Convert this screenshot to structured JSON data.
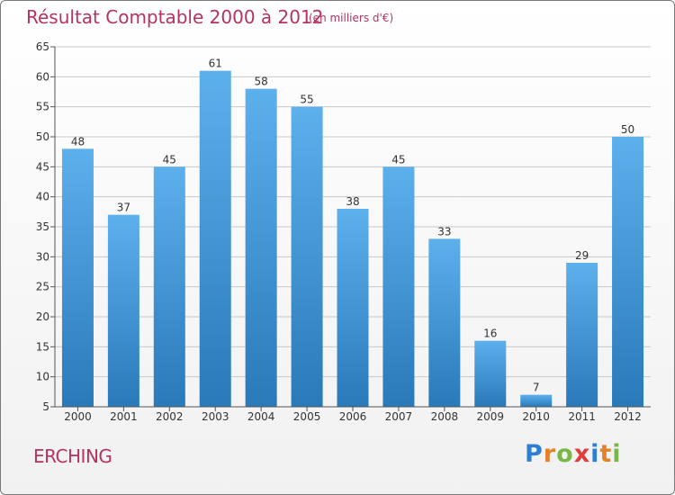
{
  "title": "Résultat Comptable 2000 à 2012",
  "subtitle": "(en milliers d'€)",
  "place": "ERCHING",
  "logo": {
    "letters": [
      "P",
      "r",
      "o",
      "x",
      "i",
      "t",
      "i"
    ],
    "colors": [
      "#2e7fd0",
      "#e2832b",
      "#7ab648",
      "#e23c3c",
      "#2e7fd0",
      "#e2832b",
      "#7ab648"
    ]
  },
  "colors": {
    "bar_light": "#5cb0ec",
    "bar_dark": "#2a79b9",
    "grid": "#c8c8c8",
    "text": "#b5335e"
  },
  "chart_data": {
    "type": "bar",
    "title": "Résultat Comptable 2000 à 2012",
    "subtitle": "(en milliers d'€)",
    "categories": [
      "2000",
      "2001",
      "2002",
      "2003",
      "2004",
      "2005",
      "2006",
      "2007",
      "2008",
      "2009",
      "2010",
      "2011",
      "2012"
    ],
    "values": [
      48,
      37,
      45,
      61,
      58,
      55,
      38,
      45,
      33,
      16,
      7,
      29,
      50
    ],
    "ylim": [
      5,
      65
    ],
    "yticks": [
      5,
      10,
      15,
      20,
      25,
      30,
      35,
      40,
      45,
      50,
      55,
      60,
      65
    ],
    "grid": true,
    "data_labels": true
  }
}
